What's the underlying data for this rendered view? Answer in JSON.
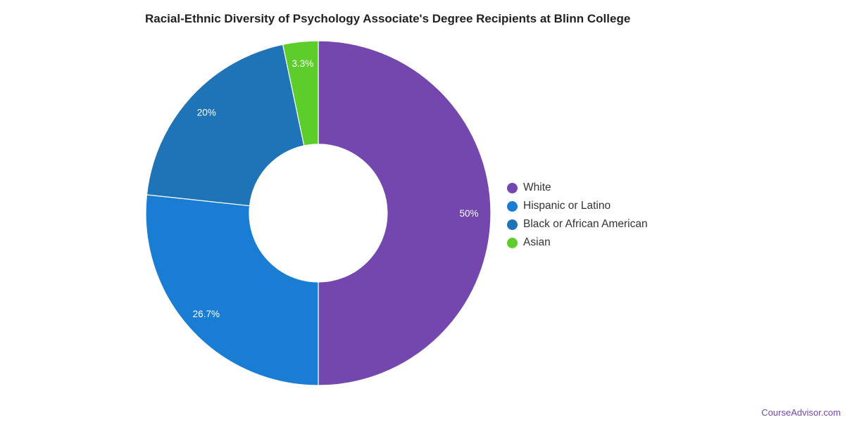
{
  "chart_data": {
    "type": "pie",
    "title": "Racial-Ethnic Diversity of Psychology Associate's Degree Recipients at Blinn College",
    "donut": true,
    "legend_position": "right",
    "slices": [
      {
        "label": "White",
        "value": 50,
        "display": "50%",
        "color": "#7447ae"
      },
      {
        "label": "Hispanic or Latino",
        "value": 26.7,
        "display": "26.7%",
        "color": "#1a7dd4"
      },
      {
        "label": "Black or African American",
        "value": 20,
        "display": "20%",
        "color": "#1f74b8"
      },
      {
        "label": "Asian",
        "value": 3.3,
        "display": "3.3%",
        "color": "#5ccd2b"
      }
    ]
  },
  "credit": "CourseAdvisor.com"
}
